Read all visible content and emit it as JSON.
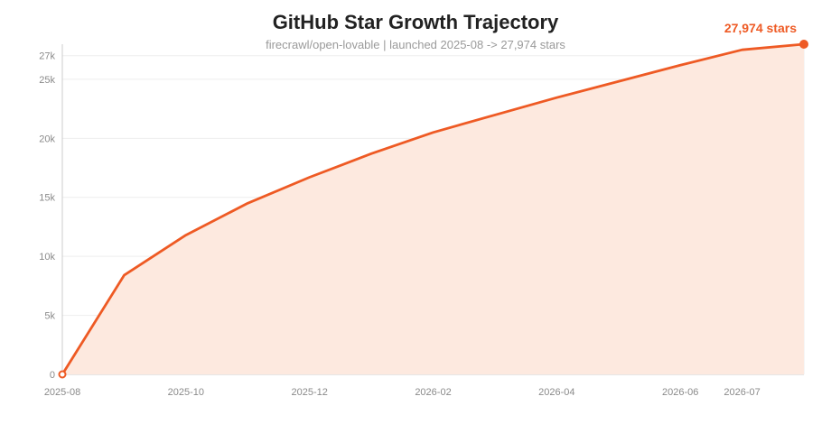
{
  "chart_data": {
    "type": "area",
    "title": "GitHub Star Growth Trajectory",
    "subtitle": "firecrawl/open-lovable | launched 2025-08 -> 27,974 stars",
    "xlabel": "",
    "ylabel": "",
    "x_ticks": [
      "2025-08",
      "2025-10",
      "2025-12",
      "2026-02",
      "2026-04",
      "2026-06",
      "2026-07"
    ],
    "y_ticks": [
      {
        "value": 0,
        "label": "0"
      },
      {
        "value": 5000,
        "label": "5k"
      },
      {
        "value": 10000,
        "label": "10k"
      },
      {
        "value": 15000,
        "label": "15k"
      },
      {
        "value": 20000,
        "label": "20k"
      },
      {
        "value": 25000,
        "label": "25k"
      },
      {
        "value": 27000,
        "label": "27k"
      }
    ],
    "ylim": [
      0,
      27974
    ],
    "grid": true,
    "line_color": "#ee5a24",
    "fill_color": "#fde9df",
    "series": [
      {
        "x": [
          "2025-08",
          "2025-09",
          "2025-10",
          "2025-11",
          "2025-12",
          "2026-01",
          "2026-02",
          "2026-03",
          "2026-04",
          "2026-05",
          "2026-06",
          "2026-07",
          "2026-08"
        ],
        "y": [
          0,
          8400,
          11800,
          14500,
          16700,
          18700,
          20500,
          21980,
          23450,
          24820,
          26200,
          27500,
          27974
        ]
      }
    ],
    "end_label": "27,974 stars"
  }
}
